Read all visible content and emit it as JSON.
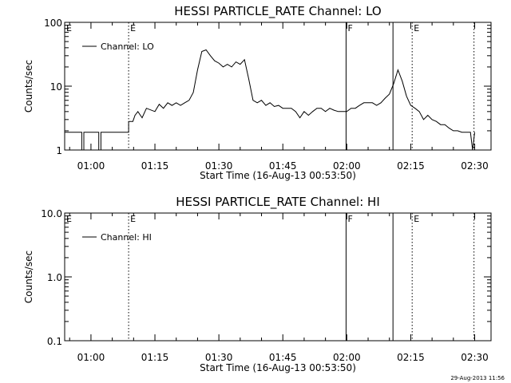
{
  "footer": {
    "timestamp": "29-Aug-2013 11:56"
  },
  "chart_data": [
    {
      "type": "line",
      "title": "HESSI PARTICLE_RATE Channel: LO",
      "xlabel": "Start Time (16-Aug-13 00:53:50)",
      "ylabel": "Counts/sec",
      "yscale": "log",
      "ylim": [
        1,
        100
      ],
      "y_tick_labels": [
        "1",
        "10",
        "100"
      ],
      "x_tick_labels": [
        "01:00",
        "01:15",
        "01:30",
        "01:45",
        "02:00",
        "02:15",
        "02:30"
      ],
      "xlim": [
        "00:53:50",
        "02:33:50"
      ],
      "legend": {
        "position": "top-left",
        "entries": [
          "Channel: LO"
        ]
      },
      "markers": [
        {
          "time": "01:08:50",
          "style": "dotted",
          "label": "E"
        },
        {
          "time": "01:59:50",
          "style": "solid",
          "label": "F"
        },
        {
          "time": "02:10:50",
          "style": "solid",
          "label": ""
        },
        {
          "time": "02:15:20",
          "style": "dotted",
          "label": "E"
        },
        {
          "time": "02:29:50",
          "style": "dotted",
          "label": ""
        }
      ],
      "series": [
        {
          "name": "Channel: LO",
          "points": [
            [
              "00:53:50",
              1.9
            ],
            [
              "00:57:50",
              1.9
            ],
            [
              "00:57:50",
              1.0
            ],
            [
              "00:58:20",
              1.0
            ],
            [
              "00:58:20",
              1.9
            ],
            [
              "01:01:50",
              1.9
            ],
            [
              "01:01:50",
              1.0
            ],
            [
              "01:02:20",
              1.0
            ],
            [
              "01:02:20",
              1.9
            ],
            [
              "01:08:50",
              1.9
            ],
            [
              "01:08:50",
              2.8
            ],
            [
              "01:09:50",
              2.8
            ],
            [
              "01:10:20",
              3.5
            ],
            [
              "01:11:00",
              4.0
            ],
            [
              "01:12:00",
              3.2
            ],
            [
              "01:13:00",
              4.5
            ],
            [
              "01:15:00",
              4.0
            ],
            [
              "01:16:00",
              5.2
            ],
            [
              "01:17:00",
              4.5
            ],
            [
              "01:18:00",
              5.5
            ],
            [
              "01:19:00",
              5.0
            ],
            [
              "01:20:00",
              5.5
            ],
            [
              "01:21:00",
              5.0
            ],
            [
              "01:22:00",
              5.5
            ],
            [
              "01:23:00",
              6.0
            ],
            [
              "01:24:00",
              8.0
            ],
            [
              "01:25:00",
              18.0
            ],
            [
              "01:26:00",
              35.0
            ],
            [
              "01:27:00",
              37.0
            ],
            [
              "01:28:00",
              30.0
            ],
            [
              "01:29:00",
              25.0
            ],
            [
              "01:30:00",
              23.0
            ],
            [
              "01:31:00",
              20.0
            ],
            [
              "01:32:00",
              22.0
            ],
            [
              "01:33:00",
              20.0
            ],
            [
              "01:34:00",
              24.0
            ],
            [
              "01:35:00",
              22.0
            ],
            [
              "01:36:00",
              26.0
            ],
            [
              "01:37:00",
              13.0
            ],
            [
              "01:38:00",
              6.0
            ],
            [
              "01:39:00",
              5.5
            ],
            [
              "01:40:00",
              6.0
            ],
            [
              "01:41:00",
              5.0
            ],
            [
              "01:42:00",
              5.5
            ],
            [
              "01:43:00",
              4.8
            ],
            [
              "01:44:00",
              5.0
            ],
            [
              "01:45:00",
              4.5
            ],
            [
              "01:46:00",
              4.5
            ],
            [
              "01:47:00",
              4.5
            ],
            [
              "01:48:00",
              4.0
            ],
            [
              "01:49:00",
              3.2
            ],
            [
              "01:50:00",
              4.0
            ],
            [
              "01:51:00",
              3.5
            ],
            [
              "01:52:00",
              4.0
            ],
            [
              "01:53:00",
              4.5
            ],
            [
              "01:54:00",
              4.5
            ],
            [
              "01:55:00",
              4.0
            ],
            [
              "01:56:00",
              4.5
            ],
            [
              "01:57:00",
              4.2
            ],
            [
              "01:58:00",
              4.0
            ],
            [
              "01:59:00",
              4.0
            ],
            [
              "02:00:00",
              4.0
            ],
            [
              "02:01:00",
              4.5
            ],
            [
              "02:02:00",
              4.5
            ],
            [
              "02:03:00",
              5.0
            ],
            [
              "02:04:00",
              5.5
            ],
            [
              "02:05:00",
              5.5
            ],
            [
              "02:06:00",
              5.5
            ],
            [
              "02:07:00",
              5.0
            ],
            [
              "02:08:00",
              5.5
            ],
            [
              "02:09:00",
              6.5
            ],
            [
              "02:10:00",
              7.5
            ],
            [
              "02:11:00",
              11.0
            ],
            [
              "02:12:00",
              18.0
            ],
            [
              "02:13:00",
              12.0
            ],
            [
              "02:14:00",
              7.0
            ],
            [
              "02:15:00",
              5.0
            ],
            [
              "02:16:00",
              4.5
            ],
            [
              "02:17:00",
              4.0
            ],
            [
              "02:18:00",
              3.0
            ],
            [
              "02:19:00",
              3.5
            ],
            [
              "02:20:00",
              3.0
            ],
            [
              "02:21:00",
              2.8
            ],
            [
              "02:22:00",
              2.5
            ],
            [
              "02:23:00",
              2.5
            ],
            [
              "02:24:00",
              2.2
            ],
            [
              "02:25:00",
              2.0
            ],
            [
              "02:26:00",
              2.0
            ],
            [
              "02:27:00",
              1.9
            ],
            [
              "02:28:00",
              1.9
            ],
            [
              "02:29:00",
              1.9
            ],
            [
              "02:29:30",
              1.0
            ],
            [
              "02:30:00",
              1.9
            ]
          ]
        }
      ]
    },
    {
      "type": "line",
      "title": "HESSI PARTICLE_RATE Channel: HI",
      "xlabel": "Start Time (16-Aug-13 00:53:50)",
      "ylabel": "Counts/sec",
      "yscale": "log",
      "ylim": [
        0.1,
        10.0
      ],
      "y_tick_labels": [
        "0.1",
        "1.0",
        "10.0"
      ],
      "x_tick_labels": [
        "01:00",
        "01:15",
        "01:30",
        "01:45",
        "02:00",
        "02:15",
        "02:30"
      ],
      "xlim": [
        "00:53:50",
        "02:33:50"
      ],
      "legend": {
        "position": "top-left",
        "entries": [
          "Channel: HI"
        ]
      },
      "markers": [
        {
          "time": "01:08:50",
          "style": "dotted",
          "label": "E"
        },
        {
          "time": "01:59:50",
          "style": "solid",
          "label": "F"
        },
        {
          "time": "02:10:50",
          "style": "solid",
          "label": ""
        },
        {
          "time": "02:15:20",
          "style": "dotted",
          "label": "E"
        },
        {
          "time": "02:29:50",
          "style": "dotted",
          "label": ""
        }
      ],
      "series": [
        {
          "name": "Channel: HI",
          "points": []
        }
      ]
    }
  ]
}
